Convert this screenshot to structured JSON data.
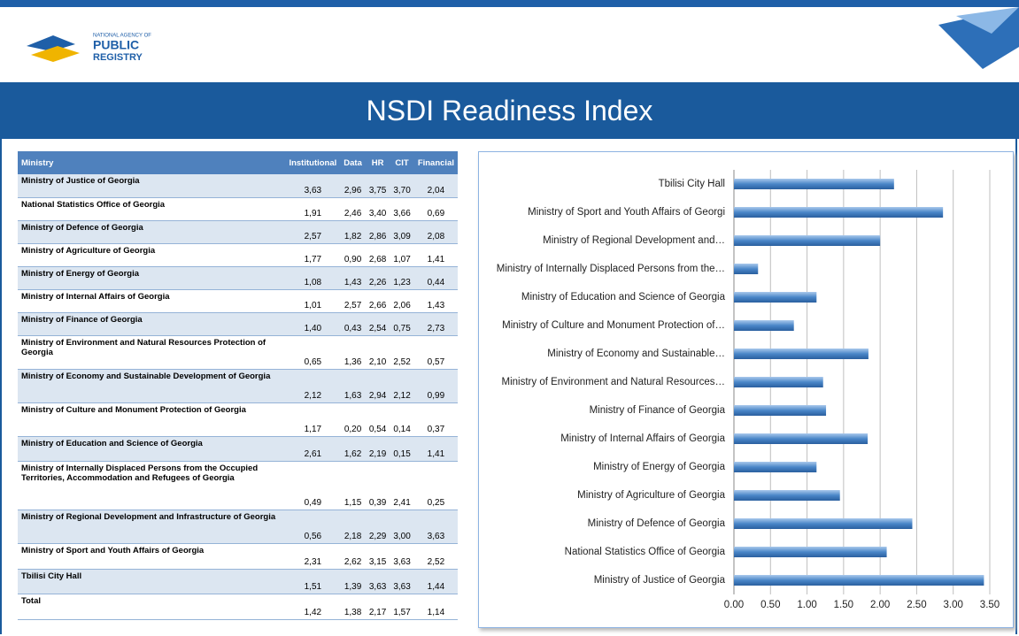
{
  "header": {
    "logo_small": "NATIONAL AGENCY OF",
    "logo_main": "PUBLIC",
    "logo_sub": "REGISTRY",
    "title": "NSDI  Readiness Index"
  },
  "table": {
    "columns": [
      "Ministry",
      "Institutional",
      "Data",
      "HR",
      "CIT",
      "Financial"
    ],
    "rows": [
      [
        "Ministry of Justice of Georgia",
        "3,63",
        "2,96",
        "3,75",
        "3,70",
        "2,04"
      ],
      [
        "National Statistics Office of Georgia",
        "1,91",
        "2,46",
        "3,40",
        "3,66",
        "0,69"
      ],
      [
        "Ministry of Defence of Georgia",
        "2,57",
        "1,82",
        "2,86",
        "3,09",
        "2,08"
      ],
      [
        "Ministry of Agriculture of Georgia",
        "1,77",
        "0,90",
        "2,68",
        "1,07",
        "1,41"
      ],
      [
        "Ministry of Energy of Georgia",
        "1,08",
        "1,43",
        "2,26",
        "1,23",
        "0,44"
      ],
      [
        "Ministry of Internal Affairs of Georgia",
        "1,01",
        "2,57",
        "2,66",
        "2,06",
        "1,43"
      ],
      [
        "Ministry of Finance of Georgia",
        "1,40",
        "0,43",
        "2,54",
        "0,75",
        "2,73"
      ],
      [
        "Ministry of Environment and Natural Resources Protection of Georgia",
        "0,65",
        "1,36",
        "2,10",
        "2,52",
        "0,57"
      ],
      [
        "Ministry of Economy and Sustainable Development of Georgia",
        "2,12",
        "1,63",
        "2,94",
        "2,12",
        "0,99"
      ],
      [
        "Ministry of Culture and Monument Protection of Georgia",
        "1,17",
        "0,20",
        "0,54",
        "0,14",
        "0,37"
      ],
      [
        "Ministry of Education and Science of Georgia",
        "2,61",
        "1,62",
        "2,19",
        "0,15",
        "1,41"
      ],
      [
        "Ministry of Internally Displaced Persons from the Occupied Territories, Accommodation and Refugees of Georgia",
        "0,49",
        "1,15",
        "0,39",
        "2,41",
        "0,25"
      ],
      [
        "Ministry of Regional Development and Infrastructure of Georgia",
        "0,56",
        "2,18",
        "2,29",
        "3,00",
        "3,63"
      ],
      [
        "Ministry of Sport and Youth Affairs of Georgia",
        "2,31",
        "2,62",
        "3,15",
        "3,63",
        "2,52"
      ],
      [
        "Tbilisi City Hall",
        "1,51",
        "1,39",
        "3,63",
        "3,63",
        "1,44"
      ],
      [
        "Total",
        "1,42",
        "1,38",
        "2,17",
        "1,57",
        "1,14"
      ]
    ]
  },
  "chart_data": {
    "type": "hbar",
    "color": "#4a86c8",
    "categories": [
      "Tbilisi City Hall",
      "Ministry of Sport and Youth Affairs of Georgi",
      "Ministry of Regional Development and…",
      "Ministry of Internally Displaced Persons from the…",
      "Ministry of Education and Science of Georgia",
      "Ministry of Culture and Monument Protection of…",
      "Ministry of Economy and Sustainable…",
      "Ministry of Environment and Natural Resources…",
      "Ministry of Finance of Georgia",
      "Ministry of Internal Affairs of Georgia",
      "Ministry of Energy of Georgia",
      "Ministry of Agriculture of Georgia",
      "Ministry of Defence of Georgia",
      "National Statistics Office of Georgia",
      "Ministry of Justice of Georgia"
    ],
    "values": [
      2.19,
      2.86,
      2.0,
      0.33,
      1.13,
      0.82,
      1.84,
      1.22,
      1.26,
      1.83,
      1.13,
      1.45,
      2.44,
      2.09,
      3.42
    ],
    "xlim": [
      0,
      3.5
    ],
    "xticks": [
      {
        "value": 0,
        "label": "0.00"
      },
      {
        "value": 0.5,
        "label": "0.50"
      },
      {
        "value": 1,
        "label": "1.00"
      },
      {
        "value": 1.5,
        "label": "1.50"
      },
      {
        "value": 2,
        "label": "2.00"
      },
      {
        "value": 2.5,
        "label": "2.50"
      },
      {
        "value": 3,
        "label": "3.00"
      },
      {
        "value": 3.5,
        "label": "3.50"
      }
    ],
    "grid": true
  }
}
